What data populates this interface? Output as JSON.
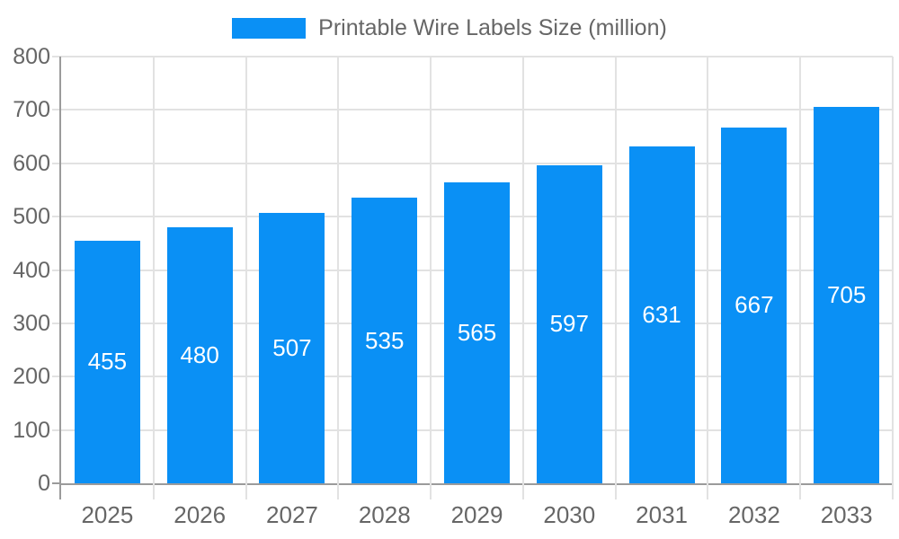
{
  "chart_data": {
    "type": "bar",
    "title": "Printable Wire Labels Size (million)",
    "categories": [
      "2025",
      "2026",
      "2027",
      "2028",
      "2029",
      "2030",
      "2031",
      "2032",
      "2033"
    ],
    "series": [
      {
        "name": "Printable Wire Labels Size (million)",
        "values": [
          455,
          480,
          507,
          535,
          565,
          597,
          631,
          667,
          705
        ]
      }
    ],
    "xlabel": "",
    "ylabel": "",
    "ylim": [
      0,
      800
    ],
    "ytick_step": 100,
    "y_tick_labels": [
      "0",
      "100",
      "200",
      "300",
      "400",
      "500",
      "600",
      "700",
      "800"
    ],
    "grid": true,
    "legend_position": "top-center",
    "value_labels": "inside-center",
    "colors": {
      "bar": "#0a90f5",
      "value_label": "#ffffff",
      "axis_text": "#666666",
      "grid_line": "#e2e2e2",
      "axis_line": "#9b9b9b",
      "background": "#ffffff"
    }
  }
}
